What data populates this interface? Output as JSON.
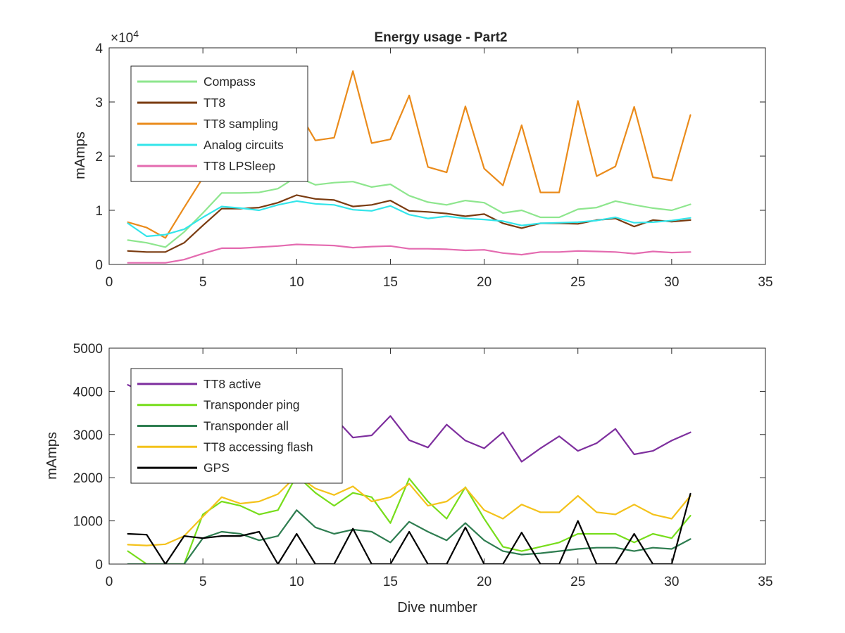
{
  "chart_data": [
    {
      "type": "line",
      "title": "Energy usage - Part2",
      "xlabel": "",
      "ylabel": "mAmps",
      "xlim": [
        0,
        35
      ],
      "ylim": [
        0,
        40000
      ],
      "xticks": [
        0,
        5,
        10,
        15,
        20,
        25,
        30,
        35
      ],
      "yticks": [
        0,
        10000,
        20000,
        30000,
        40000
      ],
      "ytick_labels": [
        "0",
        "1",
        "2",
        "3",
        "4"
      ],
      "exponent_label": "×10",
      "exponent_power": "4",
      "grid": false,
      "legend": "top-left",
      "x": [
        1,
        2,
        3,
        4,
        5,
        6,
        7,
        8,
        9,
        10,
        11,
        12,
        13,
        14,
        15,
        16,
        17,
        18,
        19,
        20,
        21,
        22,
        23,
        24,
        25,
        26,
        27,
        28,
        29,
        30,
        31
      ],
      "series": [
        {
          "name": "Compass",
          "color": "#8ee68e",
          "values": [
            4500,
            4000,
            3200,
            6000,
            9500,
            13200,
            13200,
            13300,
            14000,
            16200,
            14700,
            15100,
            15300,
            14300,
            14800,
            12700,
            11500,
            11000,
            11800,
            11400,
            9500,
            10000,
            8700,
            8700,
            10200,
            10500,
            11700,
            11000,
            10400,
            10000,
            11100
          ]
        },
        {
          "name": "TT8",
          "color": "#7a3b10",
          "values": [
            2500,
            2300,
            2300,
            4000,
            7200,
            10300,
            10300,
            10500,
            11400,
            12800,
            12100,
            11900,
            10700,
            11000,
            11800,
            9900,
            9700,
            9400,
            8900,
            9300,
            7600,
            6700,
            7600,
            7600,
            7500,
            8200,
            8500,
            7000,
            8200,
            7900,
            8200
          ]
        },
        {
          "name": "TT8 sampling",
          "color": "#ea8b1b",
          "values": [
            7800,
            6800,
            4900,
            10500,
            16000,
            21500,
            22500,
            23000,
            25000,
            28800,
            22900,
            23400,
            35700,
            22400,
            23100,
            31200,
            18000,
            17000,
            29200,
            17700,
            14600,
            25700,
            13300,
            13300,
            30200,
            16300,
            18100,
            29100,
            16100,
            15500,
            27600
          ]
        },
        {
          "name": "Analog circuits",
          "color": "#33e5ea",
          "values": [
            7600,
            5200,
            5500,
            6500,
            8700,
            10700,
            10400,
            10000,
            11000,
            11700,
            11200,
            11000,
            10100,
            9900,
            10800,
            9200,
            8500,
            8900,
            8500,
            8300,
            8000,
            7200,
            7600,
            7700,
            7800,
            8100,
            8700,
            7700,
            7800,
            8100,
            8600
          ]
        },
        {
          "name": "TT8 LPSleep",
          "color": "#e46bb0",
          "values": [
            300,
            300,
            300,
            900,
            2000,
            3000,
            3000,
            3200,
            3400,
            3700,
            3600,
            3500,
            3100,
            3300,
            3400,
            2900,
            2900,
            2800,
            2600,
            2700,
            2100,
            1800,
            2300,
            2300,
            2500,
            2400,
            2300,
            2000,
            2400,
            2200,
            2300
          ]
        }
      ]
    },
    {
      "type": "line",
      "title": "",
      "xlabel": "Dive number",
      "ylabel": "mAmps",
      "xlim": [
        0,
        35
      ],
      "ylim": [
        0,
        5000
      ],
      "xticks": [
        0,
        5,
        10,
        15,
        20,
        25,
        30,
        35
      ],
      "yticks": [
        0,
        1000,
        2000,
        3000,
        4000,
        5000
      ],
      "ytick_labels": [
        "0",
        "1000",
        "2000",
        "3000",
        "4000",
        "5000"
      ],
      "grid": false,
      "legend": "top-left",
      "x": [
        1,
        2,
        3,
        4,
        5,
        6,
        7,
        8,
        9,
        10,
        11,
        12,
        13,
        14,
        15,
        16,
        17,
        18,
        19,
        20,
        21,
        22,
        23,
        24,
        25,
        26,
        27,
        28,
        29,
        30,
        31
      ],
      "series": [
        {
          "name": "TT8 active",
          "color": "#7e2f9e",
          "values": [
            4150,
            3950,
            3800,
            3800,
            3750,
            3700,
            3650,
            3600,
            3550,
            3500,
            3450,
            3400,
            2930,
            2980,
            3430,
            2870,
            2700,
            3230,
            2860,
            2680,
            3050,
            2370,
            2680,
            2960,
            2620,
            2800,
            3130,
            2540,
            2620,
            2860,
            3050
          ]
        },
        {
          "name": "Transponder ping",
          "color": "#77dd1b",
          "values": [
            300,
            0,
            0,
            0,
            1150,
            1450,
            1350,
            1150,
            1250,
            2050,
            1650,
            1350,
            1650,
            1550,
            950,
            1980,
            1450,
            1050,
            1780,
            1050,
            400,
            300,
            400,
            500,
            700,
            700,
            700,
            500,
            700,
            600,
            1120
          ]
        },
        {
          "name": "Transponder all",
          "color": "#2e7d50",
          "values": [
            0,
            0,
            0,
            0,
            600,
            750,
            700,
            550,
            650,
            1250,
            850,
            700,
            800,
            750,
            500,
            980,
            750,
            550,
            950,
            550,
            300,
            220,
            250,
            300,
            350,
            380,
            380,
            300,
            380,
            350,
            580
          ]
        },
        {
          "name": "TT8 accessing flash",
          "color": "#f4c21b",
          "values": [
            450,
            430,
            460,
            650,
            1100,
            1550,
            1400,
            1450,
            1620,
            2050,
            1750,
            1600,
            1800,
            1450,
            1550,
            1860,
            1350,
            1450,
            1770,
            1250,
            1050,
            1380,
            1200,
            1200,
            1580,
            1200,
            1150,
            1380,
            1150,
            1050,
            1580
          ]
        },
        {
          "name": "GPS",
          "color": "#000000",
          "values": [
            700,
            680,
            0,
            650,
            600,
            650,
            650,
            750,
            0,
            700,
            0,
            0,
            820,
            0,
            0,
            750,
            0,
            0,
            850,
            0,
            0,
            730,
            0,
            0,
            1000,
            0,
            0,
            700,
            0,
            0,
            1630
          ]
        }
      ]
    }
  ]
}
